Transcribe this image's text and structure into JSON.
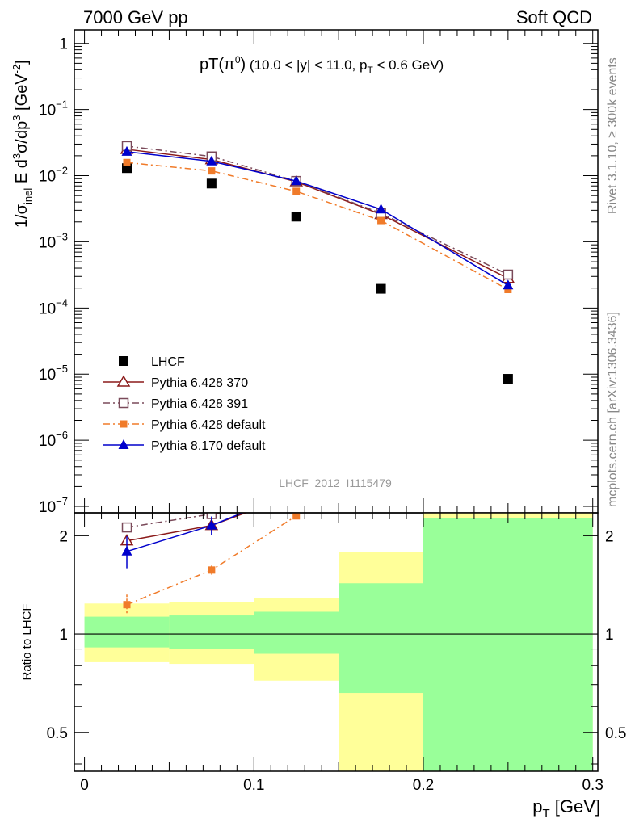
{
  "header": {
    "left": "7000 GeV pp",
    "right": "Soft QCD"
  },
  "side_labels": {
    "rivet": "Rivet 3.1.10, ≥ 300k events",
    "mcplots": "mcplots.cern.ch [arXiv:1306.3436]"
  },
  "chart_data": [
    {
      "type": "scatter",
      "title_main": "pT(π",
      "title_sup": "0",
      "title_close": ")",
      "title_cut": " (10.0 < |y| < 11.0, p",
      "title_cut_sub": "T",
      "title_cut_end": " < 0.6 GeV)",
      "ylabel_lead": "1/σ",
      "ylabel_sub": "inel",
      "ylabel_rest": " E d",
      "ylabel_sup1": "3",
      "ylabel_mid": "σ/dp",
      "ylabel_sup2": "3",
      "ylabel_unit": " [GeV",
      "ylabel_unit_sup": "-2",
      "ylabel_unit_close": "]",
      "yscale": "log",
      "ylim": [
        8e-08,
        1.6
      ],
      "xlim": [
        -0.006,
        0.303
      ],
      "yticks": [
        {
          "v": 1,
          "base": "1",
          "exp": ""
        },
        {
          "v": 0.1,
          "base": "10",
          "exp": "−1"
        },
        {
          "v": 0.01,
          "base": "10",
          "exp": "−2"
        },
        {
          "v": 0.001,
          "base": "10",
          "exp": "−3"
        },
        {
          "v": 0.0001,
          "base": "10",
          "exp": "−4"
        },
        {
          "v": 1e-05,
          "base": "10",
          "exp": "−5"
        },
        {
          "v": 1e-06,
          "base": "10",
          "exp": "−6"
        },
        {
          "v": 1e-07,
          "base": "10",
          "exp": "−7"
        }
      ],
      "watermark": "LHCF_2012_I1115479",
      "legend_position": "bottom-left",
      "series": [
        {
          "name": "LHCF",
          "color": "#000000",
          "marker": "square-filled",
          "line": "none",
          "x": [
            0.025,
            0.075,
            0.125,
            0.175,
            0.25
          ],
          "y": [
            0.013,
            0.0076,
            0.0024,
            0.000195,
            8.5e-06
          ]
        },
        {
          "name": "Pythia 6.428 370",
          "color": "#8b1a1a",
          "marker": "triangle-open",
          "line": "solid",
          "x": [
            0.025,
            0.075,
            0.125,
            0.175,
            0.25
          ],
          "y": [
            0.025,
            0.0175,
            0.0081,
            0.0026,
            0.00028
          ]
        },
        {
          "name": "Pythia 6.428 391",
          "color": "#7a4a5a",
          "marker": "square-open",
          "line": "dashdot",
          "x": [
            0.025,
            0.075,
            0.125,
            0.175,
            0.25
          ],
          "y": [
            0.028,
            0.0195,
            0.0083,
            0.0027,
            0.00032
          ]
        },
        {
          "name": "Pythia 6.428 default",
          "color": "#f07b2a",
          "marker": "square-filled-small",
          "line": "dashdot",
          "x": [
            0.025,
            0.075,
            0.125,
            0.175,
            0.25
          ],
          "y": [
            0.0158,
            0.0118,
            0.0058,
            0.0021,
            0.00019
          ]
        },
        {
          "name": "Pythia 8.170 default",
          "color": "#0000cc",
          "marker": "triangle-filled",
          "line": "solid",
          "x": [
            0.025,
            0.075,
            0.125,
            0.175,
            0.25
          ],
          "y": [
            0.023,
            0.0165,
            0.0083,
            0.0031,
            0.00022
          ]
        }
      ]
    },
    {
      "type": "scatter",
      "ylabel": "Ratio to LHCF",
      "xlabel_main": "p",
      "xlabel_sub": "T",
      "xlabel_unit": " [GeV]",
      "yscale": "log",
      "ylim": [
        0.38,
        2.35
      ],
      "xlim": [
        -0.006,
        0.303
      ],
      "xticks": [
        "0",
        "0.1",
        "0.2",
        "0.3"
      ],
      "xtick_values": [
        0,
        0.1,
        0.2,
        0.3
      ],
      "yticks": [
        "0.5",
        "1",
        "2"
      ],
      "ytick_values": [
        0.5,
        1,
        2
      ],
      "reference_line": 1,
      "uncertainty_bands": [
        {
          "x0": 0.0,
          "x1": 0.05,
          "yellow": [
            0.82,
            1.24
          ],
          "green": [
            0.91,
            1.13
          ]
        },
        {
          "x0": 0.05,
          "x1": 0.1,
          "yellow": [
            0.81,
            1.25
          ],
          "green": [
            0.9,
            1.14
          ]
        },
        {
          "x0": 0.1,
          "x1": 0.15,
          "yellow": [
            0.72,
            1.29
          ],
          "green": [
            0.87,
            1.17
          ]
        },
        {
          "x0": 0.15,
          "x1": 0.2,
          "yellow": [
            0.38,
            1.78
          ],
          "green": [
            0.66,
            1.43
          ]
        },
        {
          "x0": 0.2,
          "x1": 0.3,
          "yellow": [
            0.38,
            2.35
          ],
          "green": [
            0.38,
            2.27
          ]
        }
      ],
      "series": [
        {
          "name": "Pythia 6.428 370",
          "color": "#8b1a1a",
          "marker": "triangle-open",
          "line": "solid",
          "x": [
            0.025,
            0.075,
            0.095
          ],
          "y": [
            1.93,
            2.15,
            2.35
          ]
        },
        {
          "name": "Pythia 6.428 391",
          "color": "#7a4a5a",
          "marker": "square-open",
          "line": "dashdot",
          "x": [
            0.025,
            0.075,
            0.09
          ],
          "y": [
            2.12,
            2.33,
            2.37
          ]
        },
        {
          "name": "Pythia 6.428 default",
          "color": "#f07b2a",
          "marker": "square-filled-small",
          "line": "dashdot",
          "x": [
            0.025,
            0.075,
            0.125
          ],
          "y": [
            1.23,
            1.57,
            2.3
          ],
          "err": [
            0.09,
            0.05,
            0.06
          ]
        },
        {
          "name": "Pythia 8.170 default",
          "color": "#0000cc",
          "marker": "triangle-filled",
          "line": "solid",
          "x": [
            0.025,
            0.075,
            0.095
          ],
          "y": [
            1.79,
            2.15,
            2.37
          ],
          "err": [
            0.2,
            0.14,
            0
          ]
        }
      ]
    }
  ]
}
